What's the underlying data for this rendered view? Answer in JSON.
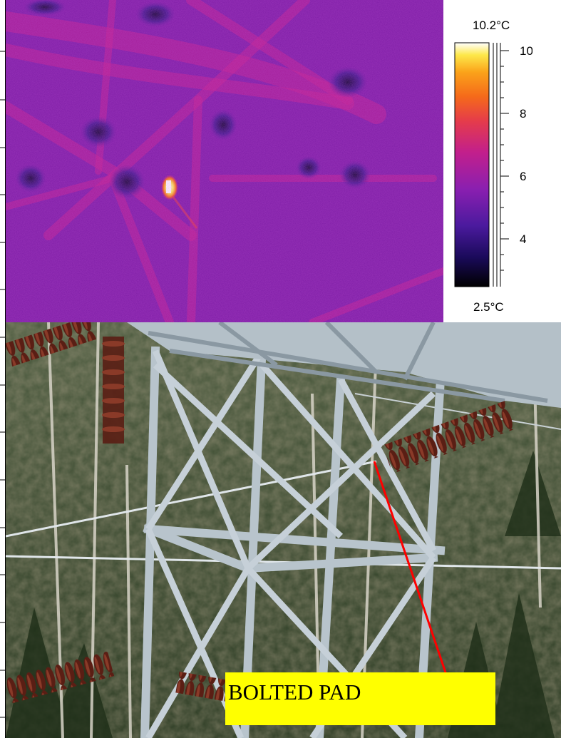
{
  "thermal_scale": {
    "max_label": "10.2°C",
    "min_label": "2.5°C",
    "ticks": [
      "10",
      "8",
      "6",
      "4"
    ],
    "colormap": [
      "#000000",
      "#1a0a5a",
      "#4b1a9e",
      "#8a1fb0",
      "#c21f8c",
      "#e53c4a",
      "#f56a1a",
      "#fba31a",
      "#fde84a",
      "#ffffff"
    ]
  },
  "callout": {
    "label": "BOLTED PAD",
    "background": "#ffff00",
    "leader_color": "#ff0000"
  },
  "palette": {
    "ir_base": "#8a1ea6",
    "ir_dark": "#3b1a8a",
    "hotspot": "#ffffff",
    "steel": "#c9d3dc",
    "insulator": "#5a1e14",
    "forest": "#2d3e26"
  }
}
